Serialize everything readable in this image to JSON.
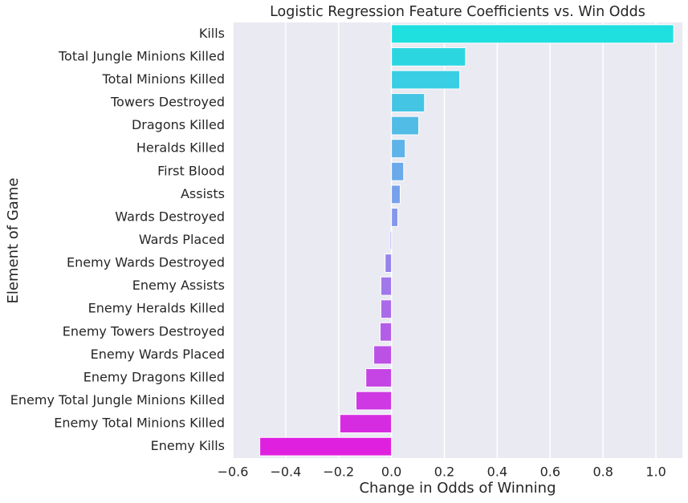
{
  "chart_data": {
    "type": "barh",
    "title": "Logistic Regression Feature Coefficients vs. Win Odds",
    "xlabel": "Change in Odds of Winning",
    "ylabel": "Element of Game",
    "categories": [
      "Kills",
      "Total Jungle Minions Killed",
      "Total Minions Killed",
      "Towers Destroyed",
      "Dragons Killed",
      "Heralds Killed",
      "First Blood",
      "Assists",
      "Wards Destroyed",
      "Wards Placed",
      "Enemy Wards Destroyed",
      "Enemy Assists",
      "Enemy Heralds Killed",
      "Enemy Towers Destroyed",
      "Enemy Wards Placed",
      "Enemy Dragons Killed",
      "Enemy Total Jungle Minions Killed",
      "Enemy Total Minions Killed",
      "Enemy Kills"
    ],
    "values": [
      1.067,
      0.28,
      0.258,
      0.125,
      0.103,
      0.052,
      0.046,
      0.033,
      0.024,
      -0.005,
      -0.024,
      -0.04,
      -0.04,
      -0.043,
      -0.067,
      -0.097,
      -0.134,
      -0.195,
      -0.498
    ],
    "colors": [
      "#20dfdf",
      "#2cd6e1",
      "#39cee3",
      "#45c5e4",
      "#51bce6",
      "#5eb3e8",
      "#6aaaea",
      "#77a1ec",
      "#8398ed",
      "#8f8fef",
      "#9883ed",
      "#a177ec",
      "#aa6aea",
      "#b35ee8",
      "#bc51e6",
      "#c545e4",
      "#ce39e3",
      "#d62ce1",
      "#df20df"
    ],
    "xlim": [
      -0.6,
      1.1
    ],
    "xticks": [
      {
        "value": -0.6,
        "label": "−0.6"
      },
      {
        "value": -0.4,
        "label": "−0.4"
      },
      {
        "value": -0.2,
        "label": "−0.2"
      },
      {
        "value": 0,
        "label": "0.0"
      },
      0.2,
      0.4,
      0.6,
      0.8,
      {
        "value": 1,
        "label": "1.0"
      }
    ],
    "grid": true
  }
}
